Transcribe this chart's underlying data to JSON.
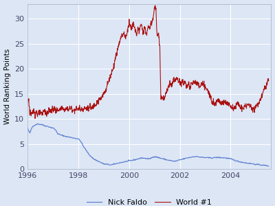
{
  "title": "",
  "ylabel": "World Ranking Points",
  "xlabel": "",
  "xlim": [
    1996.0,
    2005.6
  ],
  "ylim": [
    0,
    33
  ],
  "yticks": [
    0,
    5,
    10,
    15,
    20,
    25,
    30
  ],
  "xticks": [
    1996,
    1998,
    2000,
    2002,
    2004
  ],
  "background_color": "#dce6f5",
  "legend_bg": "#f0f4fb",
  "grid_color": "#ffffff",
  "faldo_color": "#5577cc",
  "world1_color": "#aa1111",
  "legend_loc": "lower center",
  "figsize": [
    4.0,
    3.0
  ],
  "dpi": 100,
  "faldo_anchors": [
    [
      1996.0,
      8.2
    ],
    [
      1996.05,
      7.5
    ],
    [
      1996.1,
      7.2
    ],
    [
      1996.15,
      8.0
    ],
    [
      1996.2,
      8.5
    ],
    [
      1996.3,
      8.8
    ],
    [
      1996.4,
      9.0
    ],
    [
      1996.5,
      8.9
    ],
    [
      1996.6,
      8.8
    ],
    [
      1996.7,
      8.6
    ],
    [
      1996.8,
      8.5
    ],
    [
      1996.9,
      8.3
    ],
    [
      1997.0,
      8.2
    ],
    [
      1997.1,
      7.8
    ],
    [
      1997.2,
      7.0
    ],
    [
      1997.3,
      6.8
    ],
    [
      1997.5,
      6.5
    ],
    [
      1997.7,
      6.3
    ],
    [
      1997.8,
      6.2
    ],
    [
      1998.0,
      6.0
    ],
    [
      1998.1,
      5.5
    ],
    [
      1998.2,
      4.5
    ],
    [
      1998.3,
      3.8
    ],
    [
      1998.4,
      3.0
    ],
    [
      1998.5,
      2.5
    ],
    [
      1998.6,
      2.0
    ],
    [
      1998.8,
      1.5
    ],
    [
      1999.0,
      1.0
    ],
    [
      1999.3,
      0.8
    ],
    [
      1999.6,
      1.2
    ],
    [
      1999.9,
      1.5
    ],
    [
      2000.2,
      1.8
    ],
    [
      2000.5,
      2.2
    ],
    [
      2000.8,
      2.0
    ],
    [
      2001.0,
      2.5
    ],
    [
      2001.2,
      2.2
    ],
    [
      2001.5,
      1.8
    ],
    [
      2001.8,
      1.5
    ],
    [
      2002.0,
      1.8
    ],
    [
      2002.3,
      2.2
    ],
    [
      2002.6,
      2.5
    ],
    [
      2002.9,
      2.3
    ],
    [
      2003.2,
      2.2
    ],
    [
      2003.5,
      2.3
    ],
    [
      2003.8,
      2.2
    ],
    [
      2004.0,
      2.0
    ],
    [
      2004.3,
      1.5
    ],
    [
      2004.6,
      1.2
    ],
    [
      2004.9,
      1.0
    ],
    [
      2005.0,
      0.9
    ],
    [
      2005.2,
      0.8
    ],
    [
      2005.5,
      0.6
    ]
  ],
  "world1_anchors": [
    [
      1996.0,
      13.5
    ],
    [
      1996.03,
      14.0
    ],
    [
      1996.06,
      13.2
    ],
    [
      1996.09,
      10.8
    ],
    [
      1996.12,
      11.5
    ],
    [
      1996.15,
      10.5
    ],
    [
      1996.2,
      11.2
    ],
    [
      1996.25,
      11.8
    ],
    [
      1996.3,
      10.8
    ],
    [
      1996.35,
      11.5
    ],
    [
      1996.4,
      10.8
    ],
    [
      1996.45,
      11.0
    ],
    [
      1996.5,
      11.3
    ],
    [
      1996.55,
      10.8
    ],
    [
      1996.6,
      11.2
    ],
    [
      1996.65,
      11.8
    ],
    [
      1996.7,
      11.5
    ],
    [
      1996.75,
      11.0
    ],
    [
      1996.8,
      11.2
    ],
    [
      1996.85,
      11.8
    ],
    [
      1996.9,
      11.5
    ],
    [
      1996.95,
      11.8
    ],
    [
      1997.0,
      11.8
    ],
    [
      1997.05,
      12.2
    ],
    [
      1997.1,
      11.5
    ],
    [
      1997.15,
      12.0
    ],
    [
      1997.2,
      11.5
    ],
    [
      1997.25,
      12.0
    ],
    [
      1997.3,
      11.8
    ],
    [
      1997.35,
      12.2
    ],
    [
      1997.4,
      11.8
    ],
    [
      1997.45,
      12.0
    ],
    [
      1997.5,
      11.8
    ],
    [
      1997.55,
      12.2
    ],
    [
      1997.6,
      11.8
    ],
    [
      1997.65,
      12.2
    ],
    [
      1997.7,
      12.0
    ],
    [
      1997.75,
      12.2
    ],
    [
      1997.8,
      11.5
    ],
    [
      1997.85,
      12.0
    ],
    [
      1997.9,
      11.8
    ],
    [
      1997.95,
      12.0
    ],
    [
      1998.0,
      12.0
    ],
    [
      1998.05,
      12.3
    ],
    [
      1998.1,
      11.8
    ],
    [
      1998.15,
      12.2
    ],
    [
      1998.2,
      11.8
    ],
    [
      1998.25,
      12.2
    ],
    [
      1998.3,
      12.0
    ],
    [
      1998.35,
      12.3
    ],
    [
      1998.4,
      12.0
    ],
    [
      1998.45,
      12.3
    ],
    [
      1998.5,
      12.0
    ],
    [
      1998.55,
      12.3
    ],
    [
      1998.6,
      12.5
    ],
    [
      1998.65,
      13.0
    ],
    [
      1998.7,
      13.0
    ],
    [
      1998.75,
      13.5
    ],
    [
      1998.8,
      13.5
    ],
    [
      1998.85,
      14.0
    ],
    [
      1998.9,
      14.0
    ],
    [
      1998.95,
      14.5
    ],
    [
      1999.0,
      15.0
    ],
    [
      1999.05,
      15.5
    ],
    [
      1999.1,
      16.0
    ],
    [
      1999.15,
      17.0
    ],
    [
      1999.2,
      17.5
    ],
    [
      1999.25,
      18.5
    ],
    [
      1999.3,
      19.0
    ],
    [
      1999.35,
      20.0
    ],
    [
      1999.4,
      20.5
    ],
    [
      1999.45,
      22.0
    ],
    [
      1999.5,
      23.0
    ],
    [
      1999.55,
      24.0
    ],
    [
      1999.6,
      25.0
    ],
    [
      1999.65,
      26.0
    ],
    [
      1999.7,
      26.5
    ],
    [
      1999.75,
      27.0
    ],
    [
      1999.8,
      27.0
    ],
    [
      1999.85,
      26.5
    ],
    [
      1999.9,
      26.5
    ],
    [
      1999.95,
      28.0
    ],
    [
      2000.0,
      29.5
    ],
    [
      2000.05,
      28.5
    ],
    [
      2000.1,
      28.0
    ],
    [
      2000.15,
      29.0
    ],
    [
      2000.2,
      28.5
    ],
    [
      2000.25,
      27.5
    ],
    [
      2000.3,
      27.0
    ],
    [
      2000.35,
      28.0
    ],
    [
      2000.4,
      27.5
    ],
    [
      2000.45,
      28.5
    ],
    [
      2000.5,
      28.5
    ],
    [
      2000.55,
      27.5
    ],
    [
      2000.6,
      28.0
    ],
    [
      2000.65,
      27.5
    ],
    [
      2000.7,
      27.0
    ],
    [
      2000.75,
      28.5
    ],
    [
      2000.8,
      28.0
    ],
    [
      2000.85,
      29.0
    ],
    [
      2000.9,
      29.0
    ],
    [
      2000.95,
      30.5
    ],
    [
      2001.0,
      32.2
    ],
    [
      2001.03,
      32.5
    ],
    [
      2001.06,
      32.0
    ],
    [
      2001.09,
      27.0
    ],
    [
      2001.12,
      26.5
    ],
    [
      2001.15,
      27.5
    ],
    [
      2001.18,
      26.0
    ],
    [
      2001.21,
      25.0
    ],
    [
      2001.25,
      14.5
    ],
    [
      2001.3,
      14.0
    ],
    [
      2001.35,
      14.2
    ],
    [
      2001.4,
      14.0
    ],
    [
      2001.45,
      15.0
    ],
    [
      2001.5,
      15.5
    ],
    [
      2001.55,
      16.5
    ],
    [
      2001.6,
      17.0
    ],
    [
      2001.65,
      16.5
    ],
    [
      2001.7,
      17.0
    ],
    [
      2001.75,
      17.8
    ],
    [
      2001.8,
      17.5
    ],
    [
      2001.85,
      18.0
    ],
    [
      2001.9,
      18.0
    ],
    [
      2001.95,
      17.5
    ],
    [
      2002.0,
      17.5
    ],
    [
      2002.05,
      17.0
    ],
    [
      2002.1,
      17.5
    ],
    [
      2002.15,
      17.0
    ],
    [
      2002.2,
      17.5
    ],
    [
      2002.25,
      16.8
    ],
    [
      2002.3,
      16.5
    ],
    [
      2002.35,
      17.0
    ],
    [
      2002.4,
      16.0
    ],
    [
      2002.45,
      17.0
    ],
    [
      2002.5,
      17.0
    ],
    [
      2002.55,
      17.5
    ],
    [
      2002.6,
      17.5
    ],
    [
      2002.65,
      17.0
    ],
    [
      2002.7,
      17.0
    ],
    [
      2002.75,
      16.5
    ],
    [
      2002.8,
      16.5
    ],
    [
      2002.85,
      17.0
    ],
    [
      2002.9,
      17.0
    ],
    [
      2002.95,
      16.5
    ],
    [
      2003.0,
      16.5
    ],
    [
      2003.05,
      16.0
    ],
    [
      2003.1,
      15.5
    ],
    [
      2003.15,
      15.0
    ],
    [
      2003.2,
      14.5
    ],
    [
      2003.25,
      14.0
    ],
    [
      2003.3,
      13.5
    ],
    [
      2003.35,
      13.2
    ],
    [
      2003.4,
      13.0
    ],
    [
      2003.45,
      13.5
    ],
    [
      2003.5,
      14.0
    ],
    [
      2003.55,
      13.5
    ],
    [
      2003.6,
      13.5
    ],
    [
      2003.65,
      13.2
    ],
    [
      2003.7,
      13.0
    ],
    [
      2003.75,
      13.5
    ],
    [
      2003.8,
      13.5
    ],
    [
      2003.85,
      13.2
    ],
    [
      2003.9,
      13.0
    ],
    [
      2003.95,
      12.8
    ],
    [
      2004.0,
      12.5
    ],
    [
      2004.05,
      12.2
    ],
    [
      2004.1,
      12.0
    ],
    [
      2004.15,
      12.5
    ],
    [
      2004.2,
      12.5
    ],
    [
      2004.25,
      13.0
    ],
    [
      2004.3,
      13.0
    ],
    [
      2004.35,
      12.5
    ],
    [
      2004.4,
      12.5
    ],
    [
      2004.45,
      12.0
    ],
    [
      2004.5,
      12.0
    ],
    [
      2004.55,
      12.5
    ],
    [
      2004.6,
      12.5
    ],
    [
      2004.65,
      13.0
    ],
    [
      2004.7,
      13.0
    ],
    [
      2004.75,
      12.5
    ],
    [
      2004.8,
      12.5
    ],
    [
      2004.85,
      12.0
    ],
    [
      2004.9,
      12.0
    ],
    [
      2004.95,
      12.3
    ],
    [
      2005.0,
      12.5
    ],
    [
      2005.05,
      13.0
    ],
    [
      2005.1,
      13.0
    ],
    [
      2005.15,
      14.0
    ],
    [
      2005.2,
      14.0
    ],
    [
      2005.25,
      15.0
    ],
    [
      2005.3,
      15.5
    ],
    [
      2005.35,
      16.5
    ],
    [
      2005.4,
      16.5
    ],
    [
      2005.45,
      17.5
    ],
    [
      2005.5,
      18.0
    ]
  ]
}
